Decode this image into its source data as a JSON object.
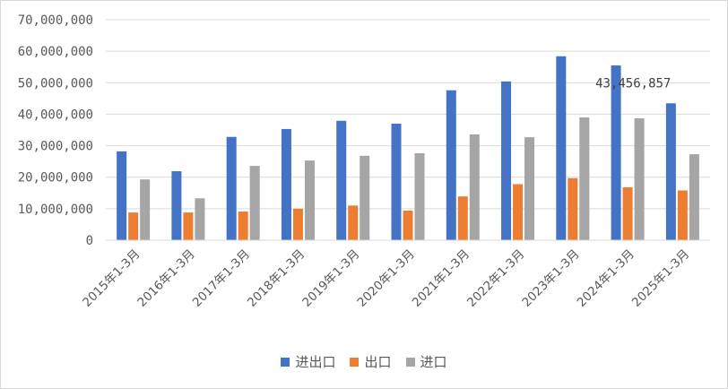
{
  "chart_data": {
    "type": "bar",
    "categories": [
      "2015年1-3月",
      "2016年1-3月",
      "2017年1-3月",
      "2018年1-3月",
      "2019年1-3月",
      "2020年1-3月",
      "2021年1-3月",
      "2022年1-3月",
      "2023年1-3月",
      "2024年1-3月",
      "2025年1-3月"
    ],
    "series": [
      {
        "name": "进出口",
        "color": "#4472c4",
        "values": [
          28200000,
          21900000,
          32800000,
          35300000,
          37900000,
          37000000,
          47600000,
          50400000,
          58400000,
          55500000,
          43456857
        ]
      },
      {
        "name": "出口",
        "color": "#ed7d31",
        "values": [
          8800000,
          8800000,
          9100000,
          10000000,
          11000000,
          9400000,
          13900000,
          17800000,
          19700000,
          16800000,
          15800000
        ]
      },
      {
        "name": "进口",
        "color": "#a5a5a5",
        "values": [
          19300000,
          13300000,
          23600000,
          25300000,
          26800000,
          27600000,
          33600000,
          32700000,
          39000000,
          38700000,
          27300000
        ]
      }
    ],
    "y_ticks": [
      "0",
      "10,000,000",
      "20,000,000",
      "30,000,000",
      "40,000,000",
      "50,000,000",
      "60,000,000",
      "70,000,000"
    ],
    "ylim": [
      0,
      70000000
    ],
    "grid": true,
    "legend_position": "bottom",
    "data_labels": [
      {
        "series": 0,
        "category": 10,
        "text": "43,456,857"
      }
    ]
  }
}
